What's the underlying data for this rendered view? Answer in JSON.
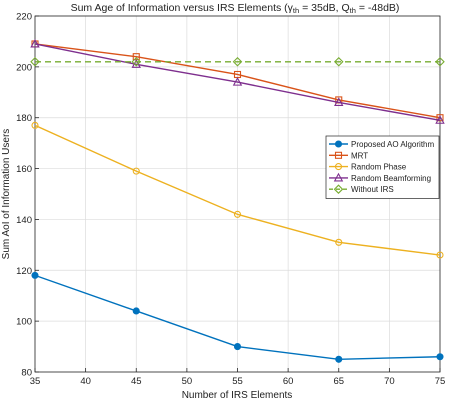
{
  "chart_data": {
    "type": "line",
    "title_main": "Sum Age of Information versus IRS Elements (",
    "title_gamma": "γ",
    "title_gamma_sub": "th",
    "title_mid": " = 35dB, Q",
    "title_q_sub": "th",
    "title_end": " = -48dB)",
    "xlabel": "Number of IRS Elements",
    "ylabel": "Sum AoI of Information Users",
    "xlim": [
      35,
      75
    ],
    "ylim": [
      80,
      220
    ],
    "xticks": [
      35,
      40,
      45,
      50,
      55,
      60,
      65,
      70,
      75
    ],
    "yticks": [
      80,
      100,
      120,
      140,
      160,
      180,
      200,
      220
    ],
    "grid": true,
    "legend_position": "right",
    "x": [
      35,
      45,
      55,
      65,
      75
    ],
    "series": [
      {
        "name": "Proposed AO Algorithm",
        "values": [
          118,
          104,
          90,
          85,
          86
        ],
        "color": "#0072BD",
        "marker": "circle",
        "dashed": false
      },
      {
        "name": "MRT",
        "values": [
          209,
          204,
          197,
          187,
          180
        ],
        "color": "#D95319",
        "marker": "square",
        "dashed": false
      },
      {
        "name": "Random Phase",
        "values": [
          177,
          159,
          142,
          131,
          126
        ],
        "color": "#EDB120",
        "marker": "circle",
        "dashed": false
      },
      {
        "name": "Random Beamforming",
        "values": [
          209,
          201,
          194,
          186,
          179
        ],
        "color": "#7E2F8E",
        "marker": "triangle",
        "dashed": false
      },
      {
        "name": "Without IRS",
        "values": [
          202,
          202,
          202,
          202,
          202
        ],
        "color": "#77AC30",
        "marker": "diamond",
        "dashed": true
      }
    ]
  }
}
